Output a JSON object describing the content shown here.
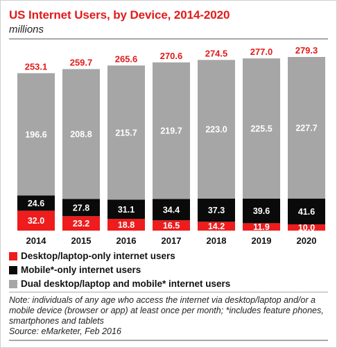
{
  "header": {
    "title": "US Internet Users, by Device, 2014-2020",
    "subtitle": "millions"
  },
  "colors": {
    "title": "#e21a1a",
    "total": "#e21a1a",
    "desktop_only": "#ee1c1c",
    "mobile_only": "#0a0a0a",
    "dual": "#a6a6a6"
  },
  "chart_data": {
    "type": "bar",
    "stacked": true,
    "title": "US Internet Users, by Device, 2014-2020",
    "subtitle": "millions",
    "categories": [
      "2014",
      "2015",
      "2016",
      "2017",
      "2018",
      "2019",
      "2020"
    ],
    "series": [
      {
        "name": "Desktop/laptop-only internet users",
        "values": [
          32.0,
          23.2,
          18.8,
          16.5,
          14.2,
          11.9,
          10.0
        ]
      },
      {
        "name": "Mobile*-only internet users",
        "values": [
          24.6,
          27.8,
          31.1,
          34.4,
          37.3,
          39.6,
          41.6
        ]
      },
      {
        "name": "Dual desktop/laptop and mobile* internet users",
        "values": [
          196.6,
          208.8,
          215.7,
          219.7,
          223.0,
          225.5,
          227.7
        ]
      }
    ],
    "totals": [
      253.1,
      259.7,
      265.6,
      270.6,
      274.5,
      277.0,
      279.3
    ],
    "ylim": [
      0,
      279.3
    ],
    "grid": false,
    "legend_position": "bottom"
  },
  "legend": [
    {
      "label": "Desktop/laptop-only internet users",
      "color": "#ee1c1c"
    },
    {
      "label": "Mobile*-only internet users",
      "color": "#0a0a0a"
    },
    {
      "label": "Dual desktop/laptop and mobile* internet users",
      "color": "#a6a6a6"
    }
  ],
  "footer": {
    "note": "Note: individuals of any age who access the internet via desktop/laptop and/or a mobile device (browser or app) at least once per month; *includes feature phones, smartphones and tablets",
    "source": "Source: eMarketer, Feb 2016"
  }
}
